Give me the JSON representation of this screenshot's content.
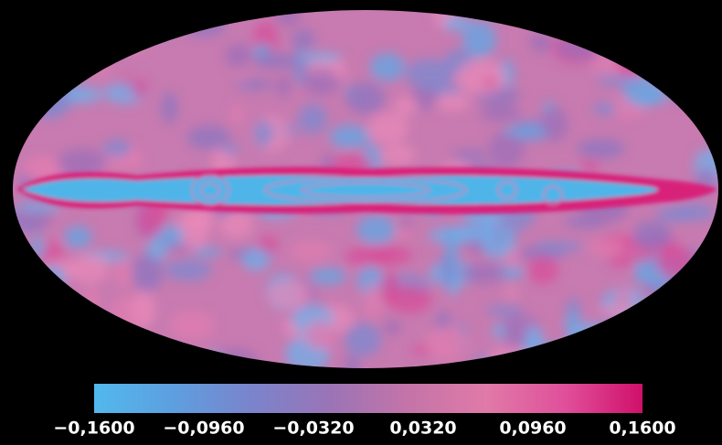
{
  "colorbar": {
    "range": [
      -0.16,
      0.16
    ],
    "colors": [
      "#52b9ec",
      "#5d9fe0",
      "#7a84cc",
      "#9a74b6",
      "#c474a8",
      "#e07aa8",
      "#e0509a",
      "#d0106a"
    ],
    "ticks": [
      {
        "value": -0.16,
        "label": "−0,1600"
      },
      {
        "value": -0.096,
        "label": "−0,0960"
      },
      {
        "value": -0.032,
        "label": "−0,0320"
      },
      {
        "value": 0.032,
        "label": "0,0320"
      },
      {
        "value": 0.096,
        "label": "0,0960"
      },
      {
        "value": 0.16,
        "label": "0,1600"
      }
    ]
  }
}
